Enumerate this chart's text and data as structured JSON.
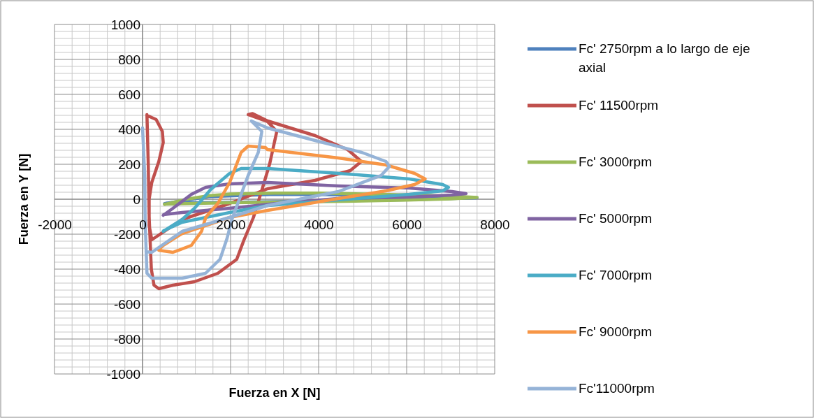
{
  "chart_data": {
    "type": "line",
    "xlabel": "Fuerza en X [N]",
    "ylabel": "Fuerza en Y [N]",
    "xlim": [
      -2000,
      8000
    ],
    "ylim": [
      -1000,
      1000
    ],
    "xticks": [
      -2000,
      0,
      2000,
      4000,
      6000,
      8000
    ],
    "yticks": [
      -1000,
      -800,
      -600,
      -400,
      -200,
      0,
      200,
      400,
      600,
      800,
      1000
    ],
    "grid": true,
    "legend": "right",
    "marker": "none",
    "line_style": "solid",
    "series": [
      {
        "name": "Fc' 2750rpm a lo largo de eje axial",
        "color": "#4f81bd",
        "x": [
          500,
          1500,
          3000,
          5000,
          7000,
          7600,
          6000,
          4000,
          2000,
          550
        ],
        "values": [
          -25,
          15,
          28,
          25,
          15,
          8,
          -3,
          -10,
          -18,
          -22
        ]
      },
      {
        "name": "Fc' 11500rpm",
        "color": "#c0504d",
        "x": [
          100,
          130,
          150,
          200,
          260,
          370,
          690,
          1180,
          1710,
          2140,
          2300,
          2520,
          2730,
          2890,
          3050,
          2840,
          2400,
          2500,
          2840,
          3920,
          4660,
          4970,
          4720,
          3920,
          2840,
          1980,
          900,
          210,
          150,
          150,
          210,
          370,
          470,
          450,
          310,
          100
        ],
        "values": [
          484,
          200,
          -100,
          -400,
          -492,
          -512,
          -492,
          -472,
          -424,
          -344,
          -236,
          -104,
          68,
          204,
          388,
          444,
          484,
          490,
          448,
          364,
          284,
          216,
          164,
          108,
          60,
          -24,
          -116,
          -232,
          -150,
          0,
          96,
          216,
          324,
          388,
          456,
          480
        ]
      },
      {
        "name": "Fc' 3000rpm",
        "color": "#9bbb59",
        "x": [
          500,
          1000,
          1500,
          2000,
          3000,
          4000,
          5000,
          6000,
          7000,
          7600,
          7000,
          6000,
          5000,
          4000,
          3000,
          2000,
          1000,
          500
        ],
        "values": [
          -30,
          0,
          20,
          30,
          35,
          35,
          30,
          25,
          18,
          10,
          2,
          -5,
          -10,
          -14,
          -17,
          -20,
          -25,
          -28
        ]
      },
      {
        "name": "Fc' 5000rpm",
        "color": "#8064a2",
        "x": [
          470,
          690,
          1110,
          1435,
          1980,
          2840,
          4450,
          6060,
          7030,
          7350,
          7030,
          6060,
          4450,
          3050,
          1980,
          900,
          480
        ],
        "values": [
          -92,
          -52,
          28,
          68,
          88,
          96,
          76,
          64,
          44,
          32,
          24,
          12,
          4,
          -24,
          -52,
          -76,
          -88
        ]
      },
      {
        "name": "Fc' 7000rpm",
        "color": "#4bacc6",
        "x": [
          470,
          900,
          1180,
          1550,
          1980,
          2240,
          2840,
          4450,
          6060,
          6820,
          6950,
          6820,
          6060,
          4450,
          2840,
          1980,
          900,
          480
        ],
        "values": [
          -184,
          -116,
          -52,
          56,
          148,
          176,
          176,
          148,
          116,
          84,
          68,
          48,
          28,
          -4,
          -36,
          -76,
          -132,
          -180
        ]
      },
      {
        "name": "Fc' 9000rpm",
        "color": "#f79646",
        "x": [
          370,
          690,
          1110,
          1340,
          1435,
          1710,
          1980,
          2240,
          2400,
          2790,
          2840,
          4450,
          5530,
          6180,
          6420,
          6180,
          5530,
          4450,
          2840,
          1980,
          900,
          470,
          370
        ],
        "values": [
          -292,
          -304,
          -264,
          -184,
          -104,
          -24,
          96,
          268,
          304,
          296,
          284,
          236,
          196,
          148,
          116,
          84,
          48,
          4,
          -64,
          -104,
          -196,
          -264,
          -288
        ]
      },
      {
        "name": "Fc'11000rpm",
        "color": "#95b3d7",
        "x": [
          0,
          50,
          60,
          100,
          210,
          900,
          1430,
          1760,
          1920,
          2030,
          2240,
          2400,
          2630,
          2710,
          2470,
          2840,
          3920,
          4980,
          5530,
          5610,
          5420,
          4450,
          2840,
          1980,
          900,
          210,
          80
        ],
        "values": [
          408,
          136,
          -132,
          -424,
          -452,
          -452,
          -424,
          -344,
          -224,
          -116,
          28,
          136,
          268,
          388,
          448,
          408,
          336,
          268,
          216,
          188,
          136,
          44,
          -36,
          -104,
          -184,
          -304,
          -300
        ]
      }
    ]
  }
}
